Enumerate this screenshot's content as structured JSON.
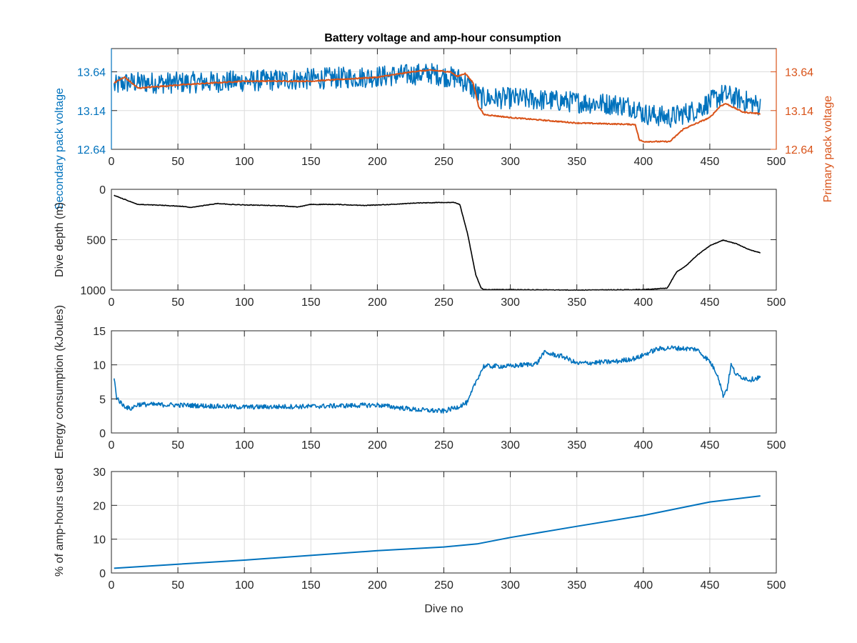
{
  "figure": {
    "title": "Battery voltage and amp-hour consumption"
  },
  "colors": {
    "blue": "#0072BD",
    "orange": "#D95319",
    "black": "#000000",
    "grid": "#DCDCDC",
    "axis": "#262626"
  },
  "chart_data": [
    {
      "type": "line",
      "title": "Battery voltage and amp-hour consumption",
      "xlabel": "",
      "ylabel": "Secondary pack voltage",
      "y2label": "Primary pack voltage",
      "xlim": [
        0,
        500
      ],
      "ylim": [
        12.64,
        13.94
      ],
      "y2lim": [
        12.64,
        13.94
      ],
      "xticks": [
        0,
        50,
        100,
        150,
        200,
        250,
        300,
        350,
        400,
        450,
        500
      ],
      "yticks": [
        12.64,
        13.14,
        13.64
      ],
      "y2ticks": [
        12.64,
        13.14,
        13.64
      ],
      "grid": true,
      "series": [
        {
          "axis": "left",
          "color": "blue",
          "noise": 0.28,
          "x": [
            2,
            10,
            50,
            100,
            150,
            200,
            240,
            262,
            270,
            278,
            300,
            350,
            380,
            395,
            400,
            420,
            440,
            460,
            470,
            488
          ],
          "y": [
            13.45,
            13.5,
            13.5,
            13.52,
            13.55,
            13.58,
            13.62,
            13.55,
            13.45,
            13.3,
            13.3,
            13.25,
            13.22,
            13.18,
            13.1,
            13.05,
            13.15,
            13.35,
            13.3,
            13.2
          ]
        },
        {
          "axis": "right",
          "color": "orange",
          "noise": 0.015,
          "x": [
            2,
            10,
            20,
            50,
            100,
            150,
            200,
            230,
            240,
            255,
            260,
            266,
            272,
            276,
            280,
            300,
            350,
            394,
            397,
            400,
            420,
            430,
            450,
            458,
            462,
            475,
            488
          ],
          "y": [
            13.5,
            13.57,
            13.43,
            13.47,
            13.52,
            13.52,
            13.57,
            13.65,
            13.66,
            13.64,
            13.58,
            13.62,
            13.5,
            13.2,
            13.09,
            13.05,
            12.98,
            12.96,
            12.76,
            12.74,
            12.74,
            12.9,
            13.05,
            13.2,
            13.23,
            13.12,
            13.1
          ]
        }
      ]
    },
    {
      "type": "line",
      "xlabel": "",
      "ylabel": "Dive depth (m)",
      "xlim": [
        0,
        500
      ],
      "ylim": [
        0,
        1000
      ],
      "y_reversed": true,
      "xticks": [
        0,
        50,
        100,
        150,
        200,
        250,
        300,
        350,
        400,
        450,
        500
      ],
      "yticks": [
        0,
        500,
        1000
      ],
      "grid": true,
      "series": [
        {
          "color": "black",
          "noise": 6,
          "x": [
            2,
            10,
            20,
            40,
            55,
            60,
            80,
            90,
            100,
            120,
            130,
            140,
            150,
            170,
            190,
            210,
            230,
            250,
            258,
            262,
            268,
            274,
            278,
            280,
            300,
            350,
            400,
            418,
            425,
            432,
            440,
            450,
            460,
            470,
            480,
            488
          ],
          "y": [
            60,
            100,
            150,
            160,
            170,
            180,
            140,
            150,
            155,
            160,
            165,
            175,
            150,
            150,
            160,
            150,
            135,
            130,
            130,
            150,
            450,
            850,
            980,
            995,
            995,
            1000,
            995,
            980,
            820,
            760,
            660,
            560,
            505,
            540,
            600,
            630
          ]
        }
      ]
    },
    {
      "type": "line",
      "xlabel": "",
      "ylabel": "Energy consumption (kJoules)",
      "xlim": [
        0,
        500
      ],
      "ylim": [
        0,
        15
      ],
      "xticks": [
        0,
        50,
        100,
        150,
        200,
        250,
        300,
        350,
        400,
        450,
        500
      ],
      "yticks": [
        0,
        5,
        10,
        15
      ],
      "grid": true,
      "series": [
        {
          "color": "blue",
          "noise": 0.7,
          "x": [
            2,
            4,
            8,
            14,
            20,
            50,
            100,
            150,
            200,
            230,
            250,
            260,
            268,
            274,
            280,
            300,
            320,
            325,
            340,
            350,
            380,
            395,
            410,
            420,
            440,
            450,
            456,
            460,
            463,
            466,
            470,
            480,
            488
          ],
          "y": [
            8,
            5.2,
            4.2,
            3.5,
            4.2,
            4.1,
            3.8,
            3.9,
            4.1,
            3.4,
            3.2,
            3.8,
            4.5,
            7.5,
            9.8,
            9.8,
            10.2,
            11.8,
            11.2,
            10.2,
            10.5,
            11,
            12.3,
            12.5,
            12.3,
            10.5,
            8.5,
            5.5,
            6.5,
            10,
            8.5,
            7.8,
            8.2
          ]
        }
      ]
    },
    {
      "type": "line",
      "xlabel": "Dive no",
      "ylabel": "% of amp-hours used",
      "xlim": [
        0,
        500
      ],
      "ylim": [
        0,
        30
      ],
      "xticks": [
        0,
        50,
        100,
        150,
        200,
        250,
        300,
        350,
        400,
        450,
        500
      ],
      "yticks": [
        0,
        10,
        20,
        30
      ],
      "grid": true,
      "series": [
        {
          "color": "blue",
          "noise": 0,
          "x": [
            2,
            50,
            100,
            150,
            200,
            250,
            275,
            300,
            350,
            400,
            450,
            488
          ],
          "y": [
            1.4,
            2.6,
            3.8,
            5.2,
            6.6,
            7.7,
            8.6,
            10.5,
            13.8,
            17.0,
            21.0,
            22.8
          ]
        }
      ]
    }
  ]
}
